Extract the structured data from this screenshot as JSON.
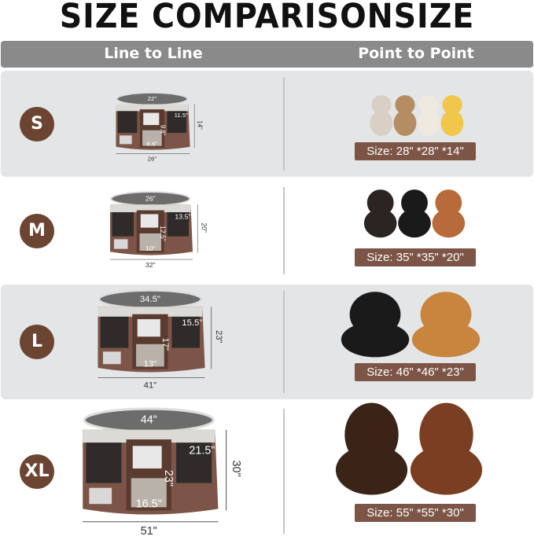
{
  "title": "SIZE COMPARISONSIZE",
  "header": {
    "left": "Line to Line",
    "right": "Point to Point"
  },
  "colors": {
    "brand_brown": "#6b4432",
    "size_box": "#7c5547",
    "header_gray": "#8a8a8a",
    "row_gray": "#e3e5e6"
  },
  "rows": [
    {
      "size": "S",
      "dims": {
        "top": "22\"",
        "side": "11.5\"",
        "door": "9.8\"",
        "bottom": "8.6\"",
        "height": "14\"",
        "width": "26\""
      },
      "label": "Size: 28\" *28\" *14\"",
      "pets": "rabbit, cat, small dog, chick"
    },
    {
      "size": "M",
      "dims": {
        "top": "26\"",
        "side": "13.5\"",
        "door": "12.5\"",
        "bottom": "10\"",
        "height": "20\"",
        "width": "32\""
      },
      "label": "Size: 35\" *35\" *20\"",
      "pets": "corgi, doberman, poodle"
    },
    {
      "size": "L",
      "dims": {
        "top": "34.5\"",
        "side": "15.5\"",
        "door": "17\"",
        "bottom": "13\"",
        "height": "23\"",
        "width": "41\""
      },
      "label": "Size: 46\" *46\" *23\"",
      "pets": "border collie, golden retriever"
    },
    {
      "size": "XL",
      "dims": {
        "top": "44\"",
        "side": "21.5\"",
        "door": "23\"",
        "bottom": "16.5\"",
        "height": "30\"",
        "width": "51\""
      },
      "label": "Size: 55\" *55\" *30\"",
      "pets": "newfoundland, saint bernard"
    }
  ]
}
